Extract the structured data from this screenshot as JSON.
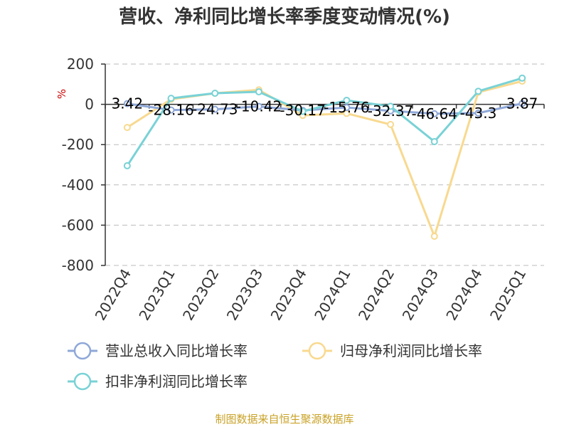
{
  "title": "营收、净利同比增长率季度变动情况(%)",
  "source": "制图数据来自恒生聚源数据库",
  "chart_data": {
    "type": "line",
    "unit": "%",
    "categories": [
      "2022Q4",
      "2023Q1",
      "2023Q2",
      "2023Q3",
      "2023Q4",
      "2024Q1",
      "2024Q2",
      "2024Q3",
      "2024Q4",
      "2025Q1"
    ],
    "ylim": [
      -800,
      200
    ],
    "yticks": [
      200,
      0,
      -200,
      -400,
      -600,
      -800
    ],
    "grid": true,
    "legend_position": "bottom",
    "series": [
      {
        "name": "营业总收入同比增长率",
        "color": "#8fa8d8",
        "values": [
          3.42,
          -28.16,
          -24.73,
          -10.42,
          -30.17,
          -15.76,
          -32.37,
          -46.64,
          -43.3,
          3.87
        ],
        "labels": [
          "3.42",
          "-28.16",
          "-24.73",
          "-10.42",
          "-30.17",
          "-15.76",
          "-32.37",
          "-46.64",
          "-43.3",
          "3.87"
        ]
      },
      {
        "name": "归母净利润同比增长率",
        "color": "#f8d98f",
        "values": [
          -115,
          25,
          55,
          72,
          -55,
          -45,
          -100,
          -655,
          60,
          115
        ]
      },
      {
        "name": "扣非净利润同比增长率",
        "color": "#79d2d6",
        "values": [
          -305,
          30,
          55,
          62,
          -35,
          20,
          -10,
          -185,
          65,
          130
        ]
      }
    ]
  }
}
